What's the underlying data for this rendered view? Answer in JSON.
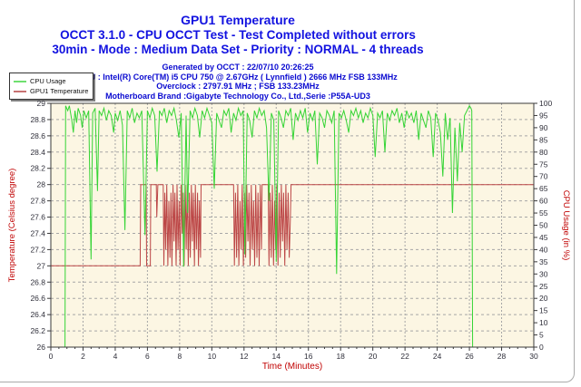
{
  "header": {
    "title": "GPU1 Temperature",
    "subtitle1": "OCCT 3.1.0 - CPU OCCT Test - Test Completed without errors",
    "subtitle2": "30min - Mode : Medium Data Set - Priority : NORMAL - 4 threads",
    "info_lines": [
      "Generated by OCCT : 22/07/10 20:26:25",
      "CPU : Intel(R) Core(TM) i5 CPU 750 @ 2.67GHz ( Lynnfield ) 2666 MHz FSB 133MHz",
      "Overclock : 2797.91 MHz ; FSB 133.23MHz",
      "Motherboard Brand :Gigabyte Technology Co., Ltd.,Serie :P55A-UD3"
    ],
    "title_color": "#1212e0",
    "info_color": "#0a0ad0"
  },
  "legend": {
    "items": [
      {
        "label": "CPU Usage",
        "color": "#6fe06f"
      },
      {
        "label": "GPU1 Temperature",
        "color": "#c87272"
      }
    ]
  },
  "chart_data": {
    "type": "line",
    "title": "GPU1 Temperature",
    "xlabel": "Time (Minutes)",
    "ylabel_left": "Temperature (Celsius degree)",
    "ylabel_right": "CPU Usage (in %)",
    "x_range": [
      0,
      30
    ],
    "y_left_range": [
      26,
      29
    ],
    "y_right_range": [
      0,
      100
    ],
    "x_ticks": [
      0,
      2,
      4,
      6,
      8,
      10,
      12,
      14,
      16,
      18,
      20,
      22,
      24,
      26,
      28,
      30
    ],
    "x_minor_step": 0.5,
    "y_left_ticks": [
      26,
      26.2,
      26.4,
      26.6,
      26.8,
      27,
      27.2,
      27.4,
      27.6,
      27.8,
      28,
      28.2,
      28.4,
      28.6,
      28.8,
      29
    ],
    "y_right_ticks": [
      0,
      5,
      10,
      15,
      20,
      25,
      30,
      35,
      40,
      45,
      50,
      55,
      60,
      65,
      70,
      75,
      80,
      85,
      90,
      95,
      100
    ],
    "grid": true,
    "legend_position": "top-left",
    "plot_bg": "#fcf6e3",
    "grid_color": "#a6a6a6",
    "axis_text_color": "#c00000",
    "tick_text_color": "#2f2f3a",
    "series": [
      {
        "name": "GPU1 Temperature",
        "axis": "left",
        "color": "#bc4646",
        "points": [
          [
            0,
            27
          ],
          [
            5.55,
            27
          ],
          [
            5.58,
            28
          ],
          [
            5.92,
            28
          ],
          [
            5.95,
            27
          ],
          [
            6.18,
            27
          ],
          [
            6.21,
            28
          ],
          [
            6.55,
            28
          ],
          [
            6.58,
            27.6
          ],
          [
            6.65,
            28
          ],
          [
            6.98,
            28
          ],
          [
            7.02,
            27
          ],
          [
            7.08,
            27.9
          ],
          [
            7.14,
            27.2
          ],
          [
            7.2,
            28
          ],
          [
            7.27,
            27
          ],
          [
            7.33,
            27.8
          ],
          [
            7.4,
            27.1
          ],
          [
            7.46,
            27.9
          ],
          [
            7.52,
            27
          ],
          [
            7.59,
            28
          ],
          [
            7.65,
            27.3
          ],
          [
            7.71,
            27.9
          ],
          [
            7.78,
            27
          ],
          [
            7.84,
            28
          ],
          [
            7.9,
            27.2
          ],
          [
            7.97,
            27.8
          ],
          [
            8.03,
            27
          ],
          [
            8.09,
            28
          ],
          [
            8.16,
            27.4
          ],
          [
            8.22,
            27.9
          ],
          [
            8.28,
            27
          ],
          [
            8.35,
            28
          ],
          [
            8.41,
            27.2
          ],
          [
            8.47,
            28
          ],
          [
            8.54,
            27
          ],
          [
            8.6,
            27.9
          ],
          [
            8.66,
            27.1
          ],
          [
            8.73,
            28
          ],
          [
            8.79,
            27.3
          ],
          [
            8.85,
            27.9
          ],
          [
            8.92,
            27
          ],
          [
            8.98,
            28
          ],
          [
            9.04,
            27.2
          ],
          [
            9.11,
            27.9
          ],
          [
            9.17,
            27
          ],
          [
            9.23,
            27.8
          ],
          [
            9.3,
            27.1
          ],
          [
            9.33,
            28
          ],
          [
            11.35,
            28
          ],
          [
            11.4,
            27
          ],
          [
            11.47,
            27.9
          ],
          [
            11.54,
            27.1
          ],
          [
            11.61,
            28
          ],
          [
            11.68,
            27
          ],
          [
            11.75,
            27.8
          ],
          [
            11.82,
            27.2
          ],
          [
            11.89,
            28
          ],
          [
            11.96,
            27
          ],
          [
            12.03,
            27.9
          ],
          [
            12.1,
            27.1
          ],
          [
            12.17,
            28
          ],
          [
            12.24,
            27.3
          ],
          [
            12.31,
            27.9
          ],
          [
            12.38,
            27
          ],
          [
            12.45,
            28
          ],
          [
            12.52,
            27.2
          ],
          [
            12.59,
            27.8
          ],
          [
            12.66,
            27
          ],
          [
            12.73,
            28
          ],
          [
            12.8,
            27.1
          ],
          [
            12.87,
            27.9
          ],
          [
            12.94,
            27
          ],
          [
            13.01,
            28
          ],
          [
            13.08,
            27.2
          ],
          [
            13.12,
            28
          ],
          [
            13.5,
            28
          ],
          [
            13.55,
            27
          ],
          [
            13.62,
            27.9
          ],
          [
            13.69,
            27.1
          ],
          [
            13.76,
            28
          ],
          [
            13.83,
            27
          ],
          [
            13.9,
            27.8
          ],
          [
            13.97,
            27.2
          ],
          [
            14.04,
            28
          ],
          [
            14.11,
            27
          ],
          [
            14.18,
            27.9
          ],
          [
            14.25,
            27.1
          ],
          [
            14.32,
            28
          ],
          [
            14.39,
            27.3
          ],
          [
            14.46,
            27.9
          ],
          [
            14.53,
            27
          ],
          [
            14.6,
            28
          ],
          [
            14.67,
            27.2
          ],
          [
            14.74,
            27.9
          ],
          [
            14.81,
            27.1
          ],
          [
            14.88,
            27.6
          ],
          [
            14.92,
            28
          ],
          [
            30,
            28
          ]
        ]
      },
      {
        "name": "CPU Usage",
        "axis": "right",
        "color": "#35d435",
        "points": [
          [
            0,
            0
          ],
          [
            0.88,
            0
          ],
          [
            0.92,
            99
          ],
          [
            1.05,
            97
          ],
          [
            1.15,
            99
          ],
          [
            1.3,
            93
          ],
          [
            1.4,
            88
          ],
          [
            1.5,
            97
          ],
          [
            1.6,
            92
          ],
          [
            1.7,
            98
          ],
          [
            1.85,
            95
          ],
          [
            1.95,
            90
          ],
          [
            2.05,
            97
          ],
          [
            2.2,
            94
          ],
          [
            2.35,
            97
          ],
          [
            2.5,
            36
          ],
          [
            2.6,
            96
          ],
          [
            2.75,
            98
          ],
          [
            2.9,
            64
          ],
          [
            3.0,
            97
          ],
          [
            3.15,
            95
          ],
          [
            3.3,
            98
          ],
          [
            3.45,
            93
          ],
          [
            3.6,
            97
          ],
          [
            3.75,
            95
          ],
          [
            3.9,
            88
          ],
          [
            4.0,
            96
          ],
          [
            4.15,
            93
          ],
          [
            4.3,
            97
          ],
          [
            4.45,
            91
          ],
          [
            4.6,
            48
          ],
          [
            4.75,
            97
          ],
          [
            4.9,
            94
          ],
          [
            5.05,
            98
          ],
          [
            5.2,
            92
          ],
          [
            5.35,
            96
          ],
          [
            5.5,
            94
          ],
          [
            5.65,
            97
          ],
          [
            5.85,
            46
          ],
          [
            6.0,
            97
          ],
          [
            6.15,
            94
          ],
          [
            6.3,
            98
          ],
          [
            6.45,
            95
          ],
          [
            6.6,
            72
          ],
          [
            6.75,
            97
          ],
          [
            6.9,
            95
          ],
          [
            7.05,
            98
          ],
          [
            7.2,
            92
          ],
          [
            7.35,
            97
          ],
          [
            7.5,
            95
          ],
          [
            7.65,
            98
          ],
          [
            7.8,
            93
          ],
          [
            7.95,
            86
          ],
          [
            8.1,
            96
          ],
          [
            8.25,
            33
          ],
          [
            8.4,
            95
          ],
          [
            8.5,
            55
          ],
          [
            8.65,
            97
          ],
          [
            8.8,
            94
          ],
          [
            8.95,
            98
          ],
          [
            9.1,
            95
          ],
          [
            9.25,
            86
          ],
          [
            9.4,
            97
          ],
          [
            9.55,
            94
          ],
          [
            9.7,
            98
          ],
          [
            9.85,
            95
          ],
          [
            10.0,
            92
          ],
          [
            10.15,
            65
          ],
          [
            10.3,
            96
          ],
          [
            10.45,
            93
          ],
          [
            10.6,
            90
          ],
          [
            10.75,
            97
          ],
          [
            10.9,
            95
          ],
          [
            11.05,
            98
          ],
          [
            11.2,
            88
          ],
          [
            11.35,
            96
          ],
          [
            11.5,
            93
          ],
          [
            11.65,
            98
          ],
          [
            11.8,
            95
          ],
          [
            11.95,
            97
          ],
          [
            12.05,
            38
          ],
          [
            12.2,
            96
          ],
          [
            12.35,
            93
          ],
          [
            12.5,
            86
          ],
          [
            12.65,
            97
          ],
          [
            12.8,
            94
          ],
          [
            12.95,
            98
          ],
          [
            13.1,
            95
          ],
          [
            13.25,
            97
          ],
          [
            13.4,
            90
          ],
          [
            13.55,
            60
          ],
          [
            13.7,
            96
          ],
          [
            13.85,
            93
          ],
          [
            14.0,
            35
          ],
          [
            14.15,
            97
          ],
          [
            14.3,
            94
          ],
          [
            14.45,
            90
          ],
          [
            14.6,
            97
          ],
          [
            14.75,
            95
          ],
          [
            14.9,
            98
          ],
          [
            15.05,
            85
          ],
          [
            15.2,
            96
          ],
          [
            15.35,
            93
          ],
          [
            15.5,
            97
          ],
          [
            15.65,
            94
          ],
          [
            15.8,
            98
          ],
          [
            15.95,
            88
          ],
          [
            16.1,
            96
          ],
          [
            16.25,
            93
          ],
          [
            16.4,
            97
          ],
          [
            16.55,
            75
          ],
          [
            16.7,
            96
          ],
          [
            16.85,
            94
          ],
          [
            17.0,
            90
          ],
          [
            17.15,
            97
          ],
          [
            17.3,
            95
          ],
          [
            17.45,
            92
          ],
          [
            17.6,
            97
          ],
          [
            17.75,
            30
          ],
          [
            17.9,
            96
          ],
          [
            18.05,
            94
          ],
          [
            18.2,
            97
          ],
          [
            18.35,
            93
          ],
          [
            18.5,
            88
          ],
          [
            18.65,
            97
          ],
          [
            18.8,
            95
          ],
          [
            18.95,
            98
          ],
          [
            19.1,
            94
          ],
          [
            19.25,
            97
          ],
          [
            19.4,
            92
          ],
          [
            19.55,
            96
          ],
          [
            19.7,
            94
          ],
          [
            19.85,
            98
          ],
          [
            20.0,
            95
          ],
          [
            20.15,
            78
          ],
          [
            20.3,
            96
          ],
          [
            20.45,
            94
          ],
          [
            20.6,
            97
          ],
          [
            20.75,
            80
          ],
          [
            20.9,
            96
          ],
          [
            21.05,
            93
          ],
          [
            21.2,
            97
          ],
          [
            21.35,
            95
          ],
          [
            21.5,
            98
          ],
          [
            21.65,
            92
          ],
          [
            21.8,
            96
          ],
          [
            21.95,
            90
          ],
          [
            22.1,
            97
          ],
          [
            22.25,
            94
          ],
          [
            22.4,
            96
          ],
          [
            22.55,
            92
          ],
          [
            22.7,
            97
          ],
          [
            22.85,
            85
          ],
          [
            23.0,
            96
          ],
          [
            23.15,
            93
          ],
          [
            23.3,
            90
          ],
          [
            23.45,
            97
          ],
          [
            23.6,
            94
          ],
          [
            23.75,
            78
          ],
          [
            23.9,
            96
          ],
          [
            24.05,
            93
          ],
          [
            24.2,
            88
          ],
          [
            24.35,
            70
          ],
          [
            24.5,
            96
          ],
          [
            24.65,
            85
          ],
          [
            24.8,
            94
          ],
          [
            24.95,
            55
          ],
          [
            25.1,
            90
          ],
          [
            25.25,
            68
          ],
          [
            25.4,
            92
          ],
          [
            25.55,
            80
          ],
          [
            25.7,
            95
          ],
          [
            25.85,
            97
          ],
          [
            26.0,
            99
          ],
          [
            26.1,
            98
          ],
          [
            26.15,
            97
          ],
          [
            26.2,
            0
          ]
        ]
      }
    ]
  }
}
